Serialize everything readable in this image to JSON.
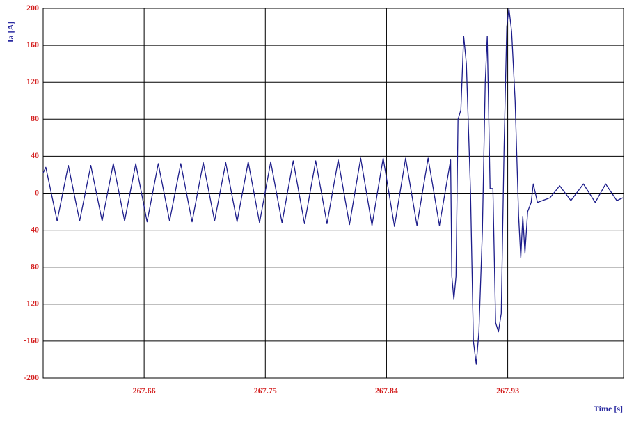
{
  "chart_data": {
    "type": "line",
    "ylabel": "Ia [A]",
    "xlabel": "Time [s]",
    "x": [
      267.585,
      267.587,
      267.5954,
      267.6037,
      267.6121,
      267.6204,
      267.6288,
      267.6371,
      267.6455,
      267.6538,
      267.6622,
      267.6705,
      267.6789,
      267.6872,
      267.6956,
      267.7039,
      267.7123,
      267.7206,
      267.729,
      267.7373,
      267.7457,
      267.754,
      267.7624,
      267.7707,
      267.7791,
      267.7874,
      267.7958,
      267.8041,
      267.8125,
      267.8208,
      267.8292,
      267.8375,
      267.8459,
      267.8542,
      267.8626,
      267.8709,
      267.8793,
      267.8876,
      267.8885,
      267.89,
      267.8916,
      267.8931,
      267.8952,
      267.8973,
      267.8993,
      267.9024,
      267.9045,
      267.9066,
      267.9086,
      267.9112,
      267.9133,
      267.9148,
      267.9169,
      267.919,
      267.921,
      267.9231,
      267.9252,
      267.9273,
      267.9293,
      267.9309,
      267.9329,
      267.9355,
      267.9381,
      267.9397,
      267.9412,
      267.9428,
      267.9448,
      267.9474,
      267.949,
      267.9521,
      267.9614,
      267.9686,
      267.9769,
      267.9862,
      267.995,
      268.0027,
      268.011,
      268.0155
    ],
    "series": [
      {
        "color": "#1c1c8a",
        "values": [
          22,
          28,
          -30,
          30,
          -30,
          30,
          -30,
          32,
          -30,
          32,
          -31,
          32,
          -30,
          32,
          -31,
          33,
          -30,
          33,
          -31,
          34,
          -32,
          34,
          -32,
          35,
          -33,
          35,
          -33,
          36,
          -34,
          38,
          -35,
          38,
          -36,
          38,
          -35,
          38,
          -35,
          36,
          -90,
          -115,
          -90,
          80,
          90,
          170,
          140,
          0,
          -160,
          -185,
          -150,
          -40,
          120,
          170,
          5,
          5,
          -140,
          -150,
          -130,
          50,
          180,
          200,
          175,
          100,
          -25,
          -70,
          -25,
          -65,
          -20,
          -10,
          10,
          -10,
          -5,
          8,
          -8,
          10,
          -10,
          10,
          -8,
          -5
        ]
      }
    ],
    "xlim": [
      267.585,
      268.016
    ],
    "xticks": [
      267.66,
      267.75,
      267.84,
      267.93
    ],
    "ylim": [
      -200,
      200
    ],
    "yticks": [
      -200,
      -160,
      -120,
      -80,
      -40,
      0,
      40,
      80,
      120,
      160,
      200
    ],
    "grid": true
  }
}
